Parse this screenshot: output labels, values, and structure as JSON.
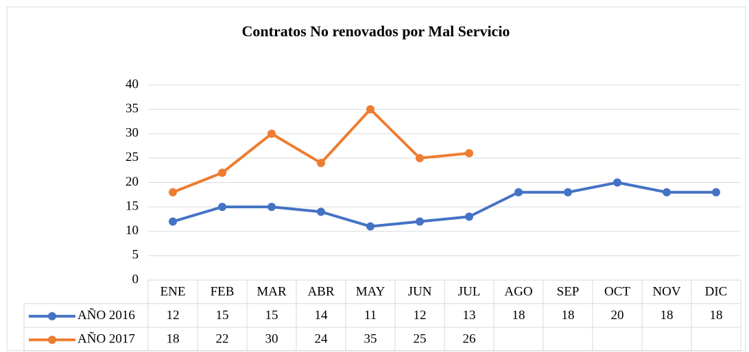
{
  "chart_data": {
    "type": "line",
    "title": "Contratos No renovados por Mal Servicio",
    "categories": [
      "ENE",
      "FEB",
      "MAR",
      "ABR",
      "MAY",
      "JUN",
      "JUL",
      "AGO",
      "SEP",
      "OCT",
      "NOV",
      "DIC"
    ],
    "series": [
      {
        "name": "AÑO 2016",
        "color": "#4472c4",
        "values": [
          12,
          15,
          15,
          14,
          11,
          12,
          13,
          18,
          18,
          20,
          18,
          18
        ]
      },
      {
        "name": "AÑO 2017",
        "color": "#ed7d31",
        "values": [
          18,
          22,
          30,
          24,
          35,
          25,
          26,
          null,
          null,
          null,
          null,
          null
        ]
      }
    ],
    "ylim": [
      0,
      40
    ],
    "yticks": [
      0,
      5,
      10,
      15,
      20,
      25,
      30,
      35,
      40
    ],
    "grid": true
  }
}
